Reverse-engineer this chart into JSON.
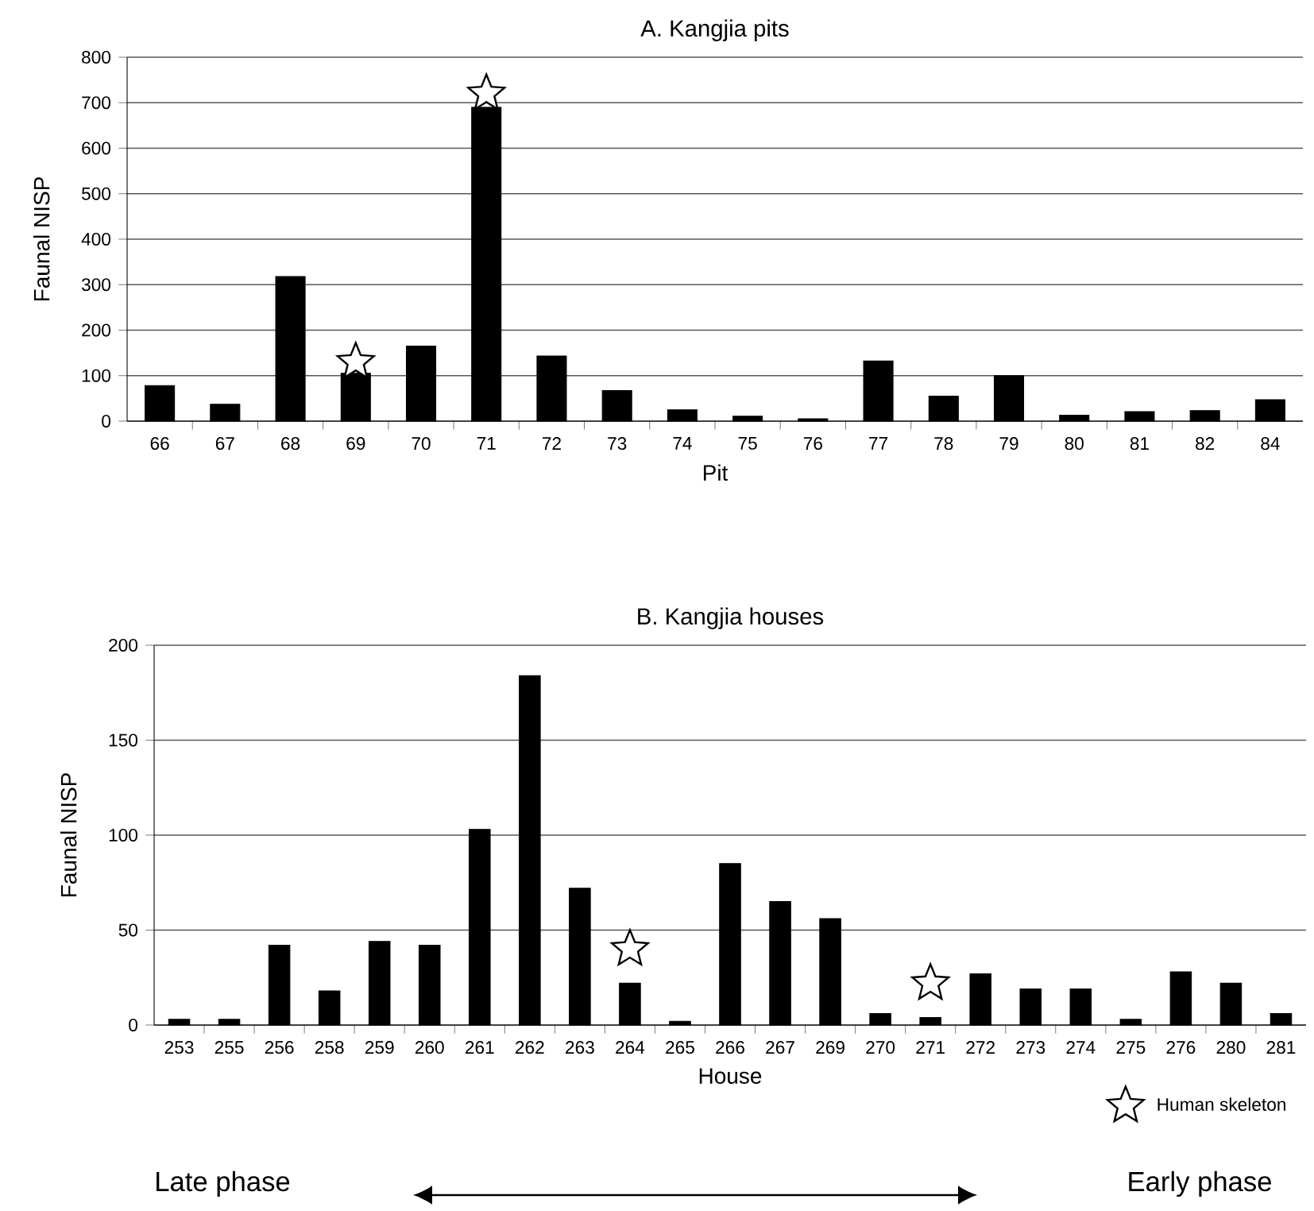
{
  "chart_data": [
    {
      "type": "bar",
      "title": "A. Kangjia pits",
      "xlabel": "Pit",
      "ylabel": "Faunal NISP",
      "categories": [
        "66",
        "67",
        "68",
        "69",
        "70",
        "71",
        "72",
        "73",
        "74",
        "75",
        "76",
        "77",
        "78",
        "79",
        "80",
        "81",
        "82",
        "84"
      ],
      "series": [
        {
          "color": "#000000",
          "values": [
            78,
            37,
            318,
            105,
            165,
            690,
            143,
            67,
            25,
            11,
            5,
            132,
            55,
            100,
            13,
            21,
            23,
            47
          ]
        },
        {
          "type": "scatter",
          "color": "#000000",
          "x": [
            "69",
            "71"
          ],
          "values": [
            130,
            720
          ]
        }
      ],
      "ylim": [
        0,
        800
      ],
      "yticks": [
        0,
        100,
        200,
        300,
        400,
        500,
        600,
        700,
        800
      ],
      "grid": "y",
      "marker": "star"
    },
    {
      "type": "bar",
      "title": "B. Kangjia houses",
      "xlabel": "House",
      "ylabel": "Faunal NISP",
      "categories": [
        "253",
        "255",
        "256",
        "258",
        "259",
        "260",
        "261",
        "262",
        "263",
        "264",
        "265",
        "266",
        "267",
        "269",
        "270",
        "271",
        "272",
        "273",
        "274",
        "275",
        "276",
        "280",
        "281"
      ],
      "series": [
        {
          "color": "#000000",
          "values": [
            3,
            3,
            42,
            18,
            44,
            42,
            103,
            184,
            72,
            22,
            2,
            85,
            65,
            56,
            6,
            4,
            27,
            19,
            19,
            3,
            28,
            22,
            6
          ]
        },
        {
          "type": "scatter",
          "name": "Human skeleton",
          "color": "#000000",
          "x": [
            "264",
            "271"
          ],
          "values": [
            40,
            22
          ]
        }
      ],
      "ylim": [
        0,
        200
      ],
      "yticks": [
        0,
        50,
        100,
        150,
        200
      ],
      "grid": "y",
      "marker": "star",
      "legend": "bottom right",
      "annotations": [
        "Late phase",
        "Early phase"
      ]
    }
  ]
}
